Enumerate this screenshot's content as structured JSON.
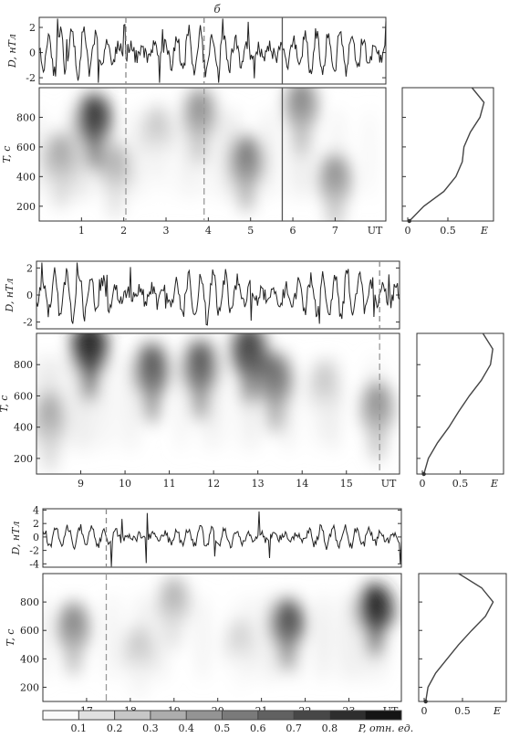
{
  "figure_label": "б",
  "chart_data": [
    {
      "type": "line",
      "ylabel": "D, нТл",
      "x_unit": "UT",
      "xlim": [
        0,
        8.2
      ],
      "ylim": [
        -2.5,
        2.8
      ],
      "yticks": [
        -2,
        0,
        2
      ],
      "markers": [
        {
          "x": 2.05,
          "style": "dashed"
        },
        {
          "x": 3.9,
          "style": "dashed"
        },
        {
          "x": 5.75,
          "style": "solid"
        }
      ]
    },
    {
      "type": "heatmap",
      "ylabel": "T, с",
      "xlabel": "UT",
      "xlim": [
        0,
        8.2
      ],
      "xticks": [
        1,
        2,
        3,
        4,
        5,
        6,
        7
      ],
      "ylim": [
        100,
        1000
      ],
      "yticks": [
        200,
        400,
        600,
        800
      ],
      "markers": [
        {
          "x": 2.05,
          "style": "dashed"
        },
        {
          "x": 3.9,
          "style": "dashed"
        },
        {
          "x": 5.75,
          "style": "solid"
        }
      ],
      "blobs": [
        {
          "x": 1.3,
          "T": 780,
          "p": 0.85
        },
        {
          "x": 0.5,
          "T": 520,
          "p": 0.35
        },
        {
          "x": 1.8,
          "T": 450,
          "p": 0.3
        },
        {
          "x": 3.8,
          "T": 820,
          "p": 0.45
        },
        {
          "x": 4.9,
          "T": 500,
          "p": 0.55
        },
        {
          "x": 6.2,
          "T": 880,
          "p": 0.5
        },
        {
          "x": 7.0,
          "T": 380,
          "p": 0.45
        },
        {
          "x": 2.8,
          "T": 700,
          "p": 0.2
        }
      ]
    },
    {
      "type": "line",
      "xlabel": "E",
      "ylim": [
        100,
        1000
      ],
      "xticks": [
        0,
        0.5
      ],
      "xticklabels": [
        "0",
        "0.5"
      ],
      "points": [
        [
          0.02,
          100
        ],
        [
          0.2,
          200
        ],
        [
          0.45,
          300
        ],
        [
          0.6,
          400
        ],
        [
          0.68,
          500
        ],
        [
          0.7,
          600
        ],
        [
          0.78,
          700
        ],
        [
          0.9,
          800
        ],
        [
          0.95,
          900
        ],
        [
          0.8,
          1000
        ]
      ]
    },
    {
      "type": "line",
      "ylabel": "D, нТл",
      "x_unit": "UT",
      "xlim": [
        8,
        16.2
      ],
      "ylim": [
        -2.5,
        2.5
      ],
      "yticks": [
        -2,
        0,
        2
      ],
      "markers": [
        {
          "x": 15.75,
          "style": "dashed"
        }
      ]
    },
    {
      "type": "heatmap",
      "ylabel": "T, с",
      "xlabel": "UT",
      "xlim": [
        8,
        16.2
      ],
      "xticks": [
        9,
        10,
        11,
        12,
        13,
        14,
        15
      ],
      "ylim": [
        100,
        1000
      ],
      "yticks": [
        200,
        400,
        600,
        800
      ],
      "markers": [
        {
          "x": 15.75,
          "style": "dashed"
        }
      ],
      "blobs": [
        {
          "x": 9.2,
          "T": 900,
          "p": 0.95
        },
        {
          "x": 10.6,
          "T": 760,
          "p": 0.7
        },
        {
          "x": 11.7,
          "T": 780,
          "p": 0.7
        },
        {
          "x": 12.8,
          "T": 880,
          "p": 0.8
        },
        {
          "x": 13.4,
          "T": 700,
          "p": 0.6
        },
        {
          "x": 8.3,
          "T": 450,
          "p": 0.35
        },
        {
          "x": 15.7,
          "T": 520,
          "p": 0.45
        },
        {
          "x": 14.5,
          "T": 650,
          "p": 0.2
        }
      ]
    },
    {
      "type": "line",
      "xlabel": "E",
      "ylim": [
        100,
        1000
      ],
      "xticks": [
        0,
        0.5
      ],
      "xticklabels": [
        "0",
        "0.5"
      ],
      "points": [
        [
          0.02,
          100
        ],
        [
          0.08,
          200
        ],
        [
          0.2,
          300
        ],
        [
          0.35,
          400
        ],
        [
          0.48,
          500
        ],
        [
          0.62,
          600
        ],
        [
          0.78,
          700
        ],
        [
          0.9,
          800
        ],
        [
          0.93,
          900
        ],
        [
          0.8,
          1000
        ]
      ]
    },
    {
      "type": "line",
      "ylabel": "D, нТл",
      "x_unit": "UT",
      "xlim": [
        16,
        24.2
      ],
      "ylim": [
        -4.5,
        4.2
      ],
      "yticks": [
        -4,
        -2,
        0,
        2,
        4
      ],
      "markers": [
        {
          "x": 17.45,
          "style": "dashed"
        }
      ]
    },
    {
      "type": "heatmap",
      "ylabel": "T, с",
      "xlabel": "UT",
      "xlim": [
        16,
        24.2
      ],
      "xticks": [
        17,
        18,
        19,
        20,
        21,
        22,
        23
      ],
      "ylim": [
        100,
        1000
      ],
      "yticks": [
        200,
        400,
        600,
        800
      ],
      "markers": [
        {
          "x": 17.45,
          "style": "dashed"
        }
      ],
      "blobs": [
        {
          "x": 16.7,
          "T": 620,
          "p": 0.5
        },
        {
          "x": 19.0,
          "T": 800,
          "p": 0.3
        },
        {
          "x": 21.6,
          "T": 650,
          "p": 0.75
        },
        {
          "x": 23.6,
          "T": 750,
          "p": 0.95
        },
        {
          "x": 20.5,
          "T": 500,
          "p": 0.15
        },
        {
          "x": 18.2,
          "T": 450,
          "p": 0.2
        }
      ]
    },
    {
      "type": "line",
      "xlabel": "E",
      "ylim": [
        100,
        1000
      ],
      "xticks": [
        0,
        0.5
      ],
      "xticklabels": [
        "0",
        "0.5"
      ],
      "points": [
        [
          0.02,
          100
        ],
        [
          0.05,
          200
        ],
        [
          0.15,
          300
        ],
        [
          0.3,
          400
        ],
        [
          0.45,
          500
        ],
        [
          0.62,
          600
        ],
        [
          0.8,
          700
        ],
        [
          0.9,
          800
        ],
        [
          0.75,
          900
        ],
        [
          0.45,
          1000
        ]
      ]
    }
  ],
  "colorbar": {
    "ticks": [
      "0.1",
      "0.2",
      "0.3",
      "0.4",
      "0.5",
      "0.6",
      "0.7",
      "0.8"
    ],
    "label": "P, отн. ед."
  }
}
